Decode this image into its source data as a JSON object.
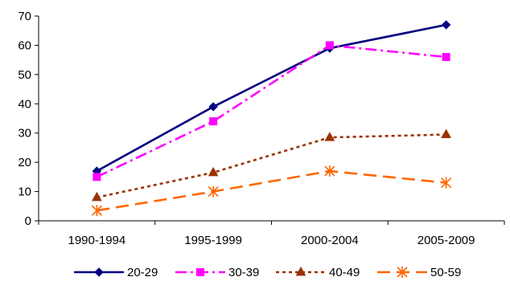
{
  "chart_data": {
    "type": "line",
    "title": "",
    "xlabel": "",
    "ylabel": "",
    "categories": [
      "1990-1994",
      "1995-1999",
      "2000-2004",
      "2005-2009"
    ],
    "ylim": [
      0,
      70
    ],
    "yticks": [
      0,
      10,
      20,
      30,
      40,
      50,
      60,
      70
    ],
    "grid": false,
    "legend_position": "bottom",
    "series": [
      {
        "name": "20-29",
        "values": [
          17,
          39,
          59,
          67
        ],
        "color": "#000080",
        "dash": "solid",
        "marker": "diamond"
      },
      {
        "name": "30-39",
        "values": [
          15,
          34,
          60,
          56
        ],
        "color": "#ff00ff",
        "dash": "dash-dot",
        "marker": "square"
      },
      {
        "name": "40-49",
        "values": [
          8,
          16.5,
          28.5,
          29.5
        ],
        "color": "#993300",
        "dash": "dotted",
        "marker": "triangle"
      },
      {
        "name": "50-59",
        "values": [
          3.5,
          10,
          17,
          13
        ],
        "color": "#ff6600",
        "dash": "long-dash",
        "marker": "asterisk"
      }
    ]
  }
}
